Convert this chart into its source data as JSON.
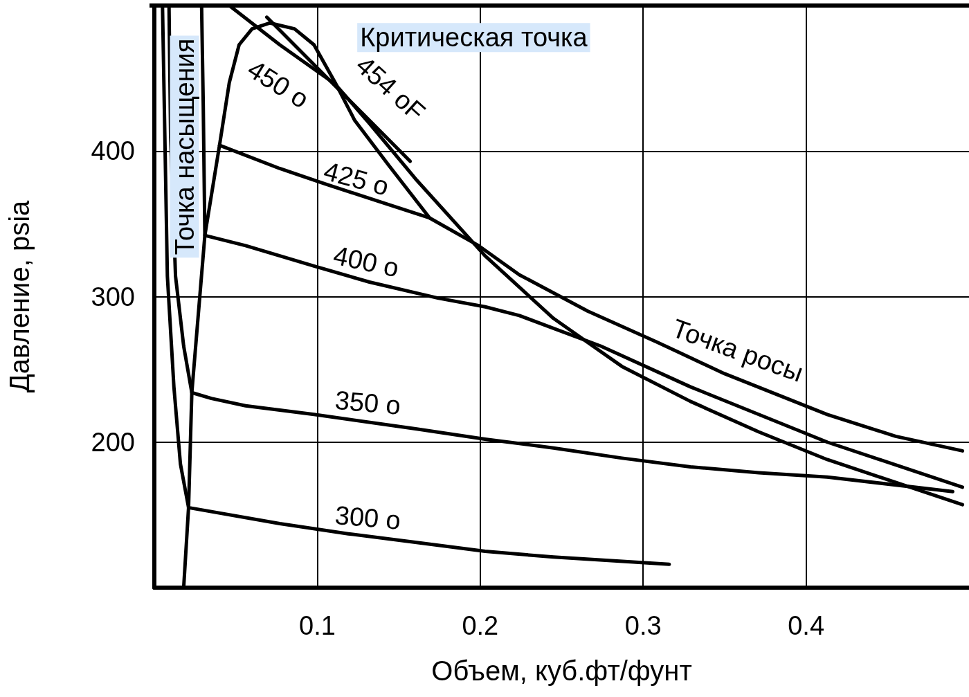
{
  "chart_data": {
    "type": "line",
    "xlabel": "Объем, куб.фт/фунт",
    "ylabel": "Давление, psia",
    "xlim": [
      0,
      0.5
    ],
    "ylim": [
      100,
      500
    ],
    "xticks": [
      0.1,
      0.2,
      0.3,
      0.4
    ],
    "yticks": [
      200,
      300,
      400
    ],
    "grid": true,
    "marker": "none",
    "line_style": "solid",
    "series": [
      {
        "color": "#000000",
        "x": [
          0.005,
          0.008,
          0.012,
          0.016,
          0.021,
          0.077,
          0.119,
          0.161,
          0.203,
          0.245,
          0.316
        ],
        "values": [
          500,
          314,
          238,
          185,
          155,
          144,
          137,
          131,
          125,
          121,
          116
        ]
      },
      {
        "color": "#000000",
        "x": [
          0.009,
          0.01,
          0.013,
          0.018,
          0.023,
          0.035,
          0.056,
          0.098,
          0.161,
          0.203,
          0.245,
          0.287,
          0.329,
          0.371,
          0.413,
          0.49
        ],
        "values": [
          500,
          409,
          314,
          266,
          234,
          230,
          225,
          219,
          209,
          202,
          196,
          189,
          183,
          179,
          176,
          166
        ]
      },
      {
        "color": "#000000",
        "x": [
          0.029,
          0.03,
          0.031,
          0.056,
          0.098,
          0.132,
          0.174,
          0.203,
          0.224,
          0.274,
          0.329,
          0.413,
          0.496
        ],
        "values": [
          500,
          433,
          342,
          335,
          321,
          310,
          299,
          293,
          287,
          266,
          238,
          200,
          169
        ]
      },
      {
        "color": "#000000",
        "x": [
          0.04,
          0.077,
          0.106,
          0.136,
          0.169
        ],
        "values": [
          404,
          388,
          377,
          366,
          354
        ]
      },
      {
        "color": "#000000",
        "x": [
          0.046,
          0.077,
          0.111,
          0.132,
          0.161,
          0.203,
          0.245,
          0.287,
          0.329,
          0.371,
          0.413,
          0.496
        ],
        "values": [
          500,
          473,
          446,
          419,
          380,
          328,
          285,
          252,
          228,
          207,
          188,
          157
        ]
      },
      {
        "color": "#000000",
        "x": [
          0.069,
          0.157
        ],
        "values": [
          492,
          393
        ]
      },
      {
        "color": "#000000",
        "x": [
          0.018,
          0.021,
          0.023,
          0.031,
          0.04,
          0.046,
          0.052,
          0.06,
          0.071,
          0.086,
          0.098,
          0.111,
          0.123,
          0.144,
          0.169,
          0.199,
          0.224,
          0.266,
          0.308,
          0.35,
          0.413,
          0.455,
          0.496
        ],
        "values": [
          100,
          155,
          234,
          342,
          404,
          447,
          473,
          484,
          488,
          484,
          473,
          447,
          421,
          390,
          354,
          335,
          315,
          290,
          269,
          247,
          219,
          204,
          194
        ]
      }
    ],
    "annotations": [
      "450 o",
      "454 oF",
      "425 o",
      "400 o",
      "350 o",
      "300 o",
      "Точка росы",
      "Критическая точка",
      "Точка насыщения"
    ]
  }
}
